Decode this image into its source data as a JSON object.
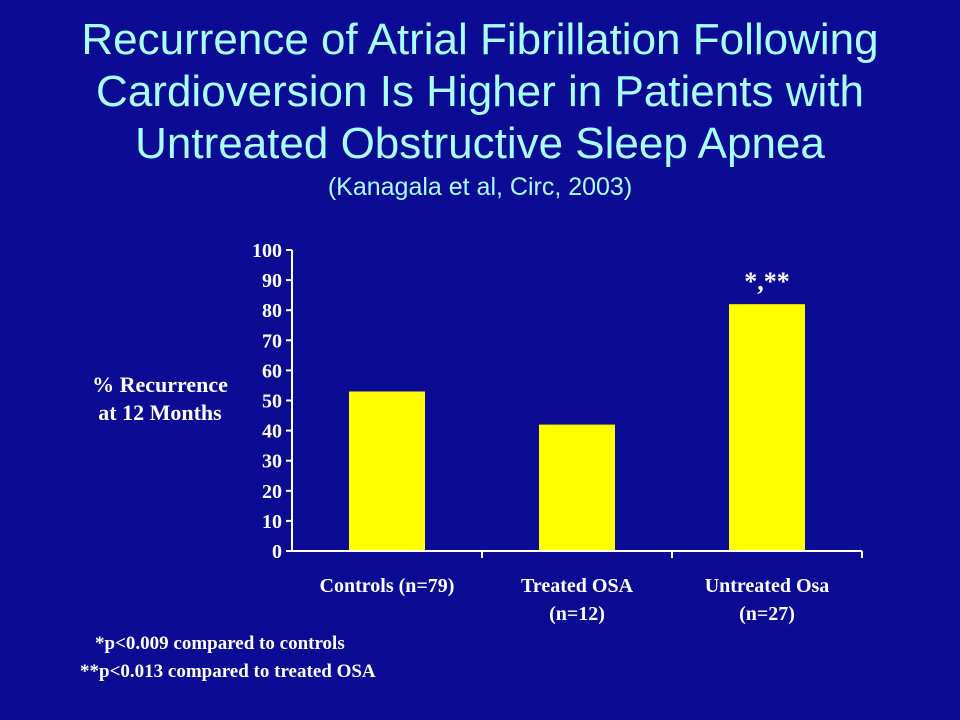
{
  "title": {
    "lines": [
      "Recurrence of Atrial Fibrillation Following",
      "Cardioversion Is Higher in Patients with",
      "Untreated Obstructive Sleep Apnea"
    ],
    "citation": "(Kanagala et al, Circ, 2003)"
  },
  "footnotes": [
    "*p<0.009 compared to controls",
    "**p<0.013 compared to treated OSA"
  ],
  "colors": {
    "background": "#0b0b93",
    "title": "#a9ffff",
    "bar": "#ffff00",
    "text": "#ffffff"
  },
  "chart_data": {
    "type": "bar",
    "title": "",
    "ylabel_lines": [
      "% Recurrence",
      "at 12 Months"
    ],
    "xlabel": "",
    "categories": [
      [
        "Controls (n=79)"
      ],
      [
        "Treated OSA",
        "(n=12)"
      ],
      [
        "Untreated Osa",
        "(n=27)"
      ]
    ],
    "values": [
      53,
      42,
      82
    ],
    "annotations": [
      "",
      "",
      "*,**"
    ],
    "ylim": [
      0,
      100
    ],
    "yticks": [
      0,
      10,
      20,
      30,
      40,
      50,
      60,
      70,
      80,
      90,
      100
    ],
    "grid": false,
    "legend": "none"
  }
}
